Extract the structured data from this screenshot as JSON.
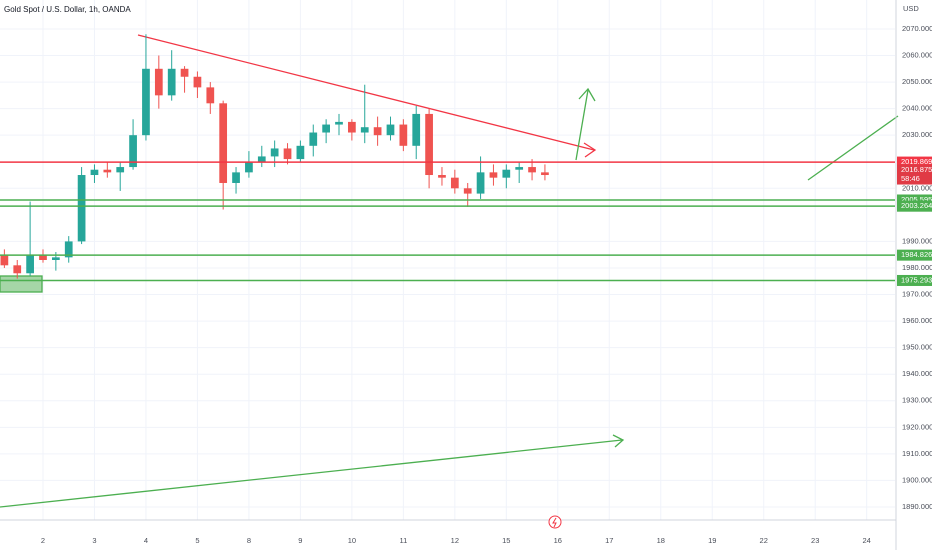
{
  "chart_data": {
    "type": "candlestick",
    "title": "Gold Spot / U.S. Dollar, 1h, OANDA",
    "y_axis_label": "USD",
    "x": [
      0.25,
      0.5,
      0.75,
      1.0,
      1.25,
      1.5,
      1.75,
      2.0,
      2.25,
      2.5,
      2.75,
      3.0,
      3.25,
      3.5,
      3.75,
      4.0,
      4.25,
      4.5,
      4.75,
      5.0,
      5.25,
      5.5,
      5.75,
      6.0,
      6.25,
      6.5,
      6.75,
      7.0,
      7.25,
      7.5,
      7.75,
      8.0,
      8.25,
      8.5,
      8.75,
      9.0,
      9.25,
      9.5,
      9.75,
      10.0,
      10.25,
      10.5,
      10.75
    ],
    "open": [
      1985,
      1981,
      1978,
      1985,
      1983,
      1984,
      1990,
      2015,
      2017,
      2016,
      2018,
      2030,
      2055,
      2045,
      2055,
      2052,
      2048,
      2042,
      2012,
      2016,
      2020,
      2022,
      2025,
      2021,
      2026,
      2031,
      2034,
      2035,
      2031,
      2033,
      2030,
      2034,
      2026,
      2038,
      2015,
      2014,
      2010,
      2008,
      2016,
      2014,
      2017,
      2018,
      2016
    ],
    "high": [
      1987,
      1983,
      2005,
      1987,
      1986,
      1992,
      2018,
      2019,
      2020,
      2020,
      2036,
      2068,
      2060,
      2062,
      2056,
      2054,
      2050,
      2043,
      2018,
      2024,
      2026,
      2028,
      2027,
      2028,
      2034,
      2036,
      2038,
      2036,
      2049,
      2037,
      2037,
      2036,
      2041,
      2040,
      2018,
      2017,
      2012,
      2022,
      2019,
      2019,
      2020,
      2021,
      2019
    ],
    "low": [
      1980,
      1976,
      1977,
      1982,
      1979,
      1982,
      1989,
      2012,
      2014,
      2009,
      2017,
      2028,
      2040,
      2043,
      2046,
      2044,
      2038,
      2002,
      2008,
      2014,
      2018,
      2018,
      2019,
      2020,
      2022,
      2027,
      2030,
      2028,
      2027,
      2026,
      2028,
      2024,
      2021,
      2010,
      2011,
      2008,
      2003,
      2006,
      2011,
      2010,
      2012,
      2013,
      2013
    ],
    "close": [
      1981,
      1978,
      1985,
      1983,
      1984,
      1990,
      2015,
      2017,
      2016,
      2018,
      2030,
      2055,
      2045,
      2055,
      2052,
      2048,
      2042,
      2012,
      2016,
      2020,
      2022,
      2025,
      2021,
      2026,
      2031,
      2034,
      2035,
      2031,
      2033,
      2030,
      2034,
      2026,
      2038,
      2015,
      2014,
      2010,
      2008,
      2016,
      2014,
      2017,
      2018,
      2016,
      2015
    ],
    "up_color": "#26a69a",
    "down_color": "#ef5350",
    "xlim": [
      0.165,
      17.55
    ],
    "xticks": [
      {
        "value": 1,
        "label": "2"
      },
      {
        "value": 2,
        "label": "3"
      },
      {
        "value": 3,
        "label": "4"
      },
      {
        "value": 4,
        "label": "5"
      },
      {
        "value": 5,
        "label": "8"
      },
      {
        "value": 6,
        "label": "9"
      },
      {
        "value": 7,
        "label": "10"
      },
      {
        "value": 8,
        "label": "11"
      },
      {
        "value": 9,
        "label": "12"
      },
      {
        "value": 10,
        "label": "15"
      },
      {
        "value": 11,
        "label": "16"
      },
      {
        "value": 12,
        "label": "17"
      },
      {
        "value": 13,
        "label": "18"
      },
      {
        "value": 14,
        "label": "19"
      },
      {
        "value": 15,
        "label": "22"
      },
      {
        "value": 16,
        "label": "23"
      },
      {
        "value": 17,
        "label": "24"
      }
    ],
    "ylim": [
      1885.1,
      2080.9
    ],
    "yticks": [
      {
        "value": 2070,
        "label": "2070.000"
      },
      {
        "value": 2060,
        "label": "2060.000"
      },
      {
        "value": 2050,
        "label": "2050.000"
      },
      {
        "value": 2040,
        "label": "2040.000"
      },
      {
        "value": 2030,
        "label": "2030.000"
      },
      {
        "value": 2010,
        "label": "2010.000"
      },
      {
        "value": 1990,
        "label": "1990.000"
      },
      {
        "value": 1980,
        "label": "1980.000"
      },
      {
        "value": 1970,
        "label": "1970.000"
      },
      {
        "value": 1960,
        "label": "1960.000"
      },
      {
        "value": 1950,
        "label": "1950.000"
      },
      {
        "value": 1940,
        "label": "1940.000"
      },
      {
        "value": 1930,
        "label": "1930.000"
      },
      {
        "value": 1920,
        "label": "1920.000"
      },
      {
        "value": 1910,
        "label": "1910.000"
      },
      {
        "value": 1900,
        "label": "1900.000"
      },
      {
        "value": 1890,
        "label": "1890.000"
      }
    ],
    "grid": true,
    "levels": [
      {
        "value": 2019.869,
        "color": "#f23645"
      },
      {
        "value": 2005.595,
        "color": "#4caf50"
      },
      {
        "value": 2003.264,
        "color": "#4caf50"
      },
      {
        "value": 1984.826,
        "color": "#4caf50"
      },
      {
        "value": 1975.293,
        "color": "#4caf50"
      }
    ],
    "current_price": {
      "value": 2016.875,
      "countdown": "58:46",
      "color": "#e03a45"
    }
  }
}
